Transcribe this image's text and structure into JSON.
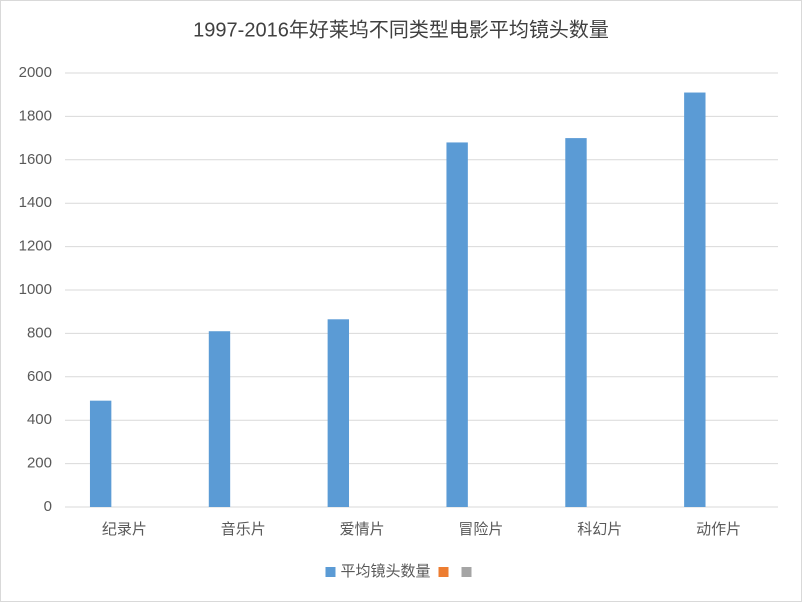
{
  "chart_data": {
    "type": "bar",
    "title": "1997-2016年好莱坞不同类型电影平均镜头数量",
    "categories": [
      "纪录片",
      "音乐片",
      "爱情片",
      "冒险片",
      "科幻片",
      "动作片"
    ],
    "series": [
      {
        "name": "平均镜头数量",
        "color": "#5b9bd5",
        "values": [
          490,
          810,
          865,
          1680,
          1700,
          1910
        ]
      },
      {
        "color": "#ed7d31",
        "values": [
          null,
          null,
          null,
          null,
          null,
          null
        ]
      },
      {
        "color": "#a5a5a5",
        "values": [
          null,
          null,
          null,
          null,
          null,
          null
        ]
      }
    ],
    "ylim": [
      0,
      2000
    ],
    "yticks": [
      0,
      200,
      400,
      600,
      800,
      1000,
      1200,
      1400,
      1600,
      1800,
      2000
    ],
    "grid": true,
    "legend": "bottom"
  }
}
